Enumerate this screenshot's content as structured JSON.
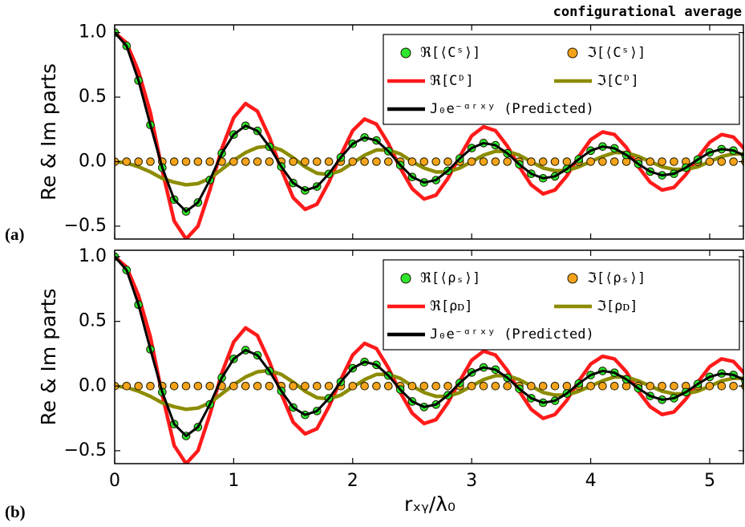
{
  "chart_data": [
    {
      "type": "line",
      "annotation": "configurational average",
      "label": "(a)",
      "ylabel": "Re & Im parts",
      "x": [
        0,
        0.1,
        0.2,
        0.3,
        0.4,
        0.5,
        0.6,
        0.7,
        0.8,
        0.9,
        1,
        1.1,
        1.2,
        1.3,
        1.4,
        1.5,
        1.6,
        1.7,
        1.8,
        1.9,
        2,
        2.1,
        2.2,
        2.3,
        2.4,
        2.5,
        2.6,
        2.7,
        2.8,
        2.9,
        3,
        3.1,
        3.2,
        3.3,
        3.4,
        3.5,
        3.6,
        3.7,
        3.8,
        3.9,
        4,
        4.1,
        4.2,
        4.3,
        4.4,
        4.5,
        4.6,
        4.7,
        4.8,
        4.9,
        5,
        5.1,
        5.2,
        5.3
      ],
      "xlim": [
        0,
        5.29
      ],
      "ylim": [
        -0.6,
        1.06
      ],
      "yticks": [
        {
          "value": -0.5,
          "label": "−0.5"
        },
        {
          "value": 0,
          "label": "0.0"
        },
        0.5,
        {
          "value": 1,
          "label": "1.0"
        }
      ],
      "series": [
        {
          "name": "ℜ[⟨Cˢ⟩]",
          "style": "markers",
          "color": "#2ee62e",
          "values": [
            1,
            0.897,
            0.629,
            0.284,
            -0.047,
            -0.294,
            -0.386,
            -0.317,
            -0.142,
            0.064,
            0.21,
            0.278,
            0.238,
            0.116,
            -0.038,
            -0.166,
            -0.223,
            -0.193,
            -0.095,
            0.032,
            0.138,
            0.187,
            0.164,
            0.081,
            -0.027,
            -0.119,
            -0.162,
            -0.143,
            -0.071,
            0.024,
            0.105,
            0.144,
            0.127,
            0.064,
            -0.021,
            -0.094,
            -0.129,
            -0.114,
            -0.057,
            0.019,
            0.085,
            0.117,
            0.103,
            0.052,
            -0.018,
            -0.077,
            -0.106,
            -0.094,
            -0.047,
            0.016,
            0.071,
            0.097,
            0.086,
            0.043
          ]
        },
        {
          "name": "ℑ[⟨Cˢ⟩]",
          "style": "markers",
          "color": "#f5a31a",
          "values": [
            0,
            0,
            0,
            0,
            0,
            0,
            0,
            0,
            0,
            0,
            0,
            0,
            0,
            0,
            0,
            0,
            0,
            0,
            0,
            0,
            0,
            0,
            0,
            0,
            0,
            0,
            0,
            0,
            0,
            0,
            0,
            0,
            0,
            0,
            0,
            0,
            0,
            0,
            0,
            0,
            0,
            0,
            0,
            0,
            0,
            0,
            0,
            0,
            0,
            0,
            0,
            0,
            0,
            0
          ]
        },
        {
          "name": "ℜ[Cᴰ]",
          "style": "line",
          "color": "#ff1a1a",
          "values": [
            1,
            0.92,
            0.7,
            0.38,
            -0.07,
            -0.46,
            -0.6,
            -0.5,
            -0.22,
            0.1,
            0.34,
            0.45,
            0.39,
            0.19,
            -0.06,
            -0.28,
            -0.37,
            -0.33,
            -0.16,
            0.05,
            0.24,
            0.33,
            0.29,
            0.14,
            -0.05,
            -0.21,
            -0.29,
            -0.26,
            -0.13,
            0.04,
            0.2,
            0.27,
            0.24,
            0.12,
            -0.04,
            -0.18,
            -0.25,
            -0.22,
            -0.11,
            0.04,
            0.17,
            0.23,
            0.21,
            0.11,
            -0.04,
            -0.16,
            -0.22,
            -0.2,
            -0.1,
            0.03,
            0.15,
            0.21,
            0.19,
            0.09
          ]
        },
        {
          "name": "ℑ[Cᴰ]",
          "style": "line",
          "color": "#8c8c00",
          "values": [
            0,
            -0.01,
            -0.04,
            -0.08,
            -0.13,
            -0.16,
            -0.18,
            -0.17,
            -0.13,
            -0.06,
            0.01,
            0.07,
            0.11,
            0.12,
            0.09,
            0.03,
            -0.04,
            -0.09,
            -0.1,
            -0.07,
            -0.01,
            0.05,
            0.09,
            0.09,
            0.06,
            0,
            -0.05,
            -0.08,
            -0.08,
            -0.05,
            0,
            0.05,
            0.08,
            0.08,
            0.05,
            0,
            -0.05,
            -0.07,
            -0.07,
            -0.04,
            0,
            0.04,
            0.07,
            0.07,
            0.04,
            0,
            -0.04,
            -0.06,
            -0.06,
            -0.04,
            0,
            0.04,
            0.06,
            0.06
          ]
        },
        {
          "name": "J₀e⁻ᵅʳˣʸ (Predicted)",
          "style": "line",
          "color": "#000000",
          "values": [
            1,
            0.897,
            0.629,
            0.284,
            -0.047,
            -0.294,
            -0.386,
            -0.317,
            -0.142,
            0.064,
            0.21,
            0.278,
            0.238,
            0.116,
            -0.038,
            -0.166,
            -0.223,
            -0.193,
            -0.095,
            0.032,
            0.138,
            0.187,
            0.164,
            0.081,
            -0.027,
            -0.119,
            -0.162,
            -0.143,
            -0.071,
            0.024,
            0.105,
            0.144,
            0.127,
            0.064,
            -0.021,
            -0.094,
            -0.129,
            -0.114,
            -0.057,
            0.019,
            0.085,
            0.117,
            0.103,
            0.052,
            -0.018,
            -0.077,
            -0.106,
            -0.094,
            -0.047,
            0.016,
            0.071,
            0.097,
            0.086,
            0.043
          ]
        }
      ]
    },
    {
      "type": "line",
      "label": "(b)",
      "ylabel": "Re & Im parts",
      "xlabel": "rₓᵧ/λ₀",
      "x": [
        0,
        0.1,
        0.2,
        0.3,
        0.4,
        0.5,
        0.6,
        0.7,
        0.8,
        0.9,
        1,
        1.1,
        1.2,
        1.3,
        1.4,
        1.5,
        1.6,
        1.7,
        1.8,
        1.9,
        2,
        2.1,
        2.2,
        2.3,
        2.4,
        2.5,
        2.6,
        2.7,
        2.8,
        2.9,
        3,
        3.1,
        3.2,
        3.3,
        3.4,
        3.5,
        3.6,
        3.7,
        3.8,
        3.9,
        4,
        4.1,
        4.2,
        4.3,
        4.4,
        4.5,
        4.6,
        4.7,
        4.8,
        4.9,
        5,
        5.1,
        5.2,
        5.3
      ],
      "xlim": [
        0,
        5.29
      ],
      "ylim": [
        -0.6,
        1.05
      ],
      "xticks": [
        0,
        1,
        2,
        3,
        4,
        5
      ],
      "yticks": [
        {
          "value": -0.5,
          "label": "−0.5"
        },
        {
          "value": 0,
          "label": "0.0"
        },
        0.5,
        {
          "value": 1,
          "label": "1.0"
        }
      ],
      "series": [
        {
          "name": "ℜ[⟨ρₛ⟩]",
          "style": "markers",
          "color": "#2ee62e",
          "values": [
            1,
            0.897,
            0.629,
            0.284,
            -0.047,
            -0.294,
            -0.386,
            -0.317,
            -0.142,
            0.064,
            0.21,
            0.278,
            0.238,
            0.116,
            -0.038,
            -0.166,
            -0.223,
            -0.193,
            -0.095,
            0.032,
            0.138,
            0.187,
            0.164,
            0.081,
            -0.027,
            -0.119,
            -0.162,
            -0.143,
            -0.071,
            0.024,
            0.105,
            0.144,
            0.127,
            0.064,
            -0.021,
            -0.094,
            -0.129,
            -0.114,
            -0.057,
            0.019,
            0.085,
            0.117,
            0.103,
            0.052,
            -0.018,
            -0.077,
            -0.106,
            -0.094,
            -0.047,
            0.016,
            0.071,
            0.097,
            0.086,
            0.043
          ]
        },
        {
          "name": "ℑ[⟨ρₛ⟩]",
          "style": "markers",
          "color": "#f5a31a",
          "values": [
            0,
            0,
            0,
            0,
            0,
            0,
            0,
            0,
            0,
            0,
            0,
            0,
            0,
            0,
            0,
            0,
            0,
            0,
            0,
            0,
            0,
            0,
            0,
            0,
            0,
            0,
            0,
            0,
            0,
            0,
            0,
            0,
            0,
            0,
            0,
            0,
            0,
            0,
            0,
            0,
            0,
            0,
            0,
            0,
            0,
            0,
            0,
            0,
            0,
            0,
            0,
            0,
            0,
            0
          ]
        },
        {
          "name": "ℜ[ρᴅ]",
          "style": "line",
          "color": "#ff1a1a",
          "values": [
            1,
            0.92,
            0.7,
            0.38,
            -0.07,
            -0.46,
            -0.6,
            -0.5,
            -0.22,
            0.1,
            0.34,
            0.45,
            0.39,
            0.19,
            -0.06,
            -0.28,
            -0.37,
            -0.33,
            -0.16,
            0.05,
            0.24,
            0.33,
            0.29,
            0.14,
            -0.05,
            -0.21,
            -0.29,
            -0.26,
            -0.13,
            0.04,
            0.2,
            0.27,
            0.24,
            0.12,
            -0.04,
            -0.18,
            -0.25,
            -0.22,
            -0.11,
            0.04,
            0.17,
            0.23,
            0.21,
            0.11,
            -0.04,
            -0.16,
            -0.22,
            -0.2,
            -0.1,
            0.03,
            0.15,
            0.21,
            0.19,
            0.09
          ]
        },
        {
          "name": "ℑ[ρᴅ]",
          "style": "line",
          "color": "#8c8c00",
          "values": [
            0,
            -0.01,
            -0.04,
            -0.08,
            -0.13,
            -0.16,
            -0.18,
            -0.17,
            -0.13,
            -0.06,
            0.01,
            0.07,
            0.11,
            0.12,
            0.09,
            0.03,
            -0.04,
            -0.09,
            -0.1,
            -0.07,
            -0.01,
            0.05,
            0.09,
            0.09,
            0.06,
            0,
            -0.05,
            -0.08,
            -0.08,
            -0.05,
            0,
            0.05,
            0.08,
            0.08,
            0.05,
            0,
            -0.05,
            -0.07,
            -0.07,
            -0.04,
            0,
            0.04,
            0.07,
            0.07,
            0.04,
            0,
            -0.04,
            -0.06,
            -0.06,
            -0.04,
            0,
            0.04,
            0.06,
            0.06
          ]
        },
        {
          "name": "J₀e⁻ᵅʳˣʸ (Predicted)",
          "style": "line",
          "color": "#000000",
          "values": [
            1,
            0.897,
            0.629,
            0.284,
            -0.047,
            -0.294,
            -0.386,
            -0.317,
            -0.142,
            0.064,
            0.21,
            0.278,
            0.238,
            0.116,
            -0.038,
            -0.166,
            -0.223,
            -0.193,
            -0.095,
            0.032,
            0.138,
            0.187,
            0.164,
            0.081,
            -0.027,
            -0.119,
            -0.162,
            -0.143,
            -0.071,
            0.024,
            0.105,
            0.144,
            0.127,
            0.064,
            -0.021,
            -0.094,
            -0.129,
            -0.114,
            -0.057,
            0.019,
            0.085,
            0.117,
            0.103,
            0.052,
            -0.018,
            -0.077,
            -0.106,
            -0.094,
            -0.047,
            0.016,
            0.071,
            0.097,
            0.086,
            0.043
          ]
        }
      ]
    }
  ]
}
